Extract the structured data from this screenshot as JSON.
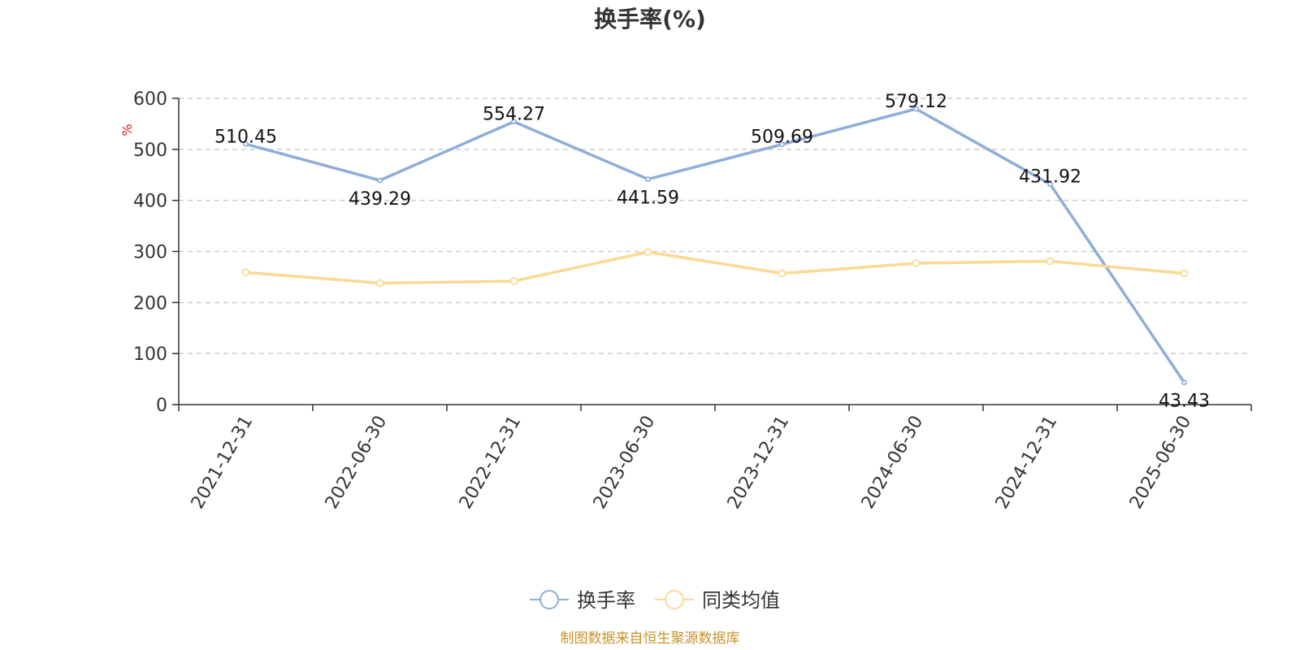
{
  "chart_data": {
    "type": "line",
    "title": "换手率(%)",
    "ylabel": "%",
    "ylim": [
      0,
      600
    ],
    "yticks": [
      0,
      100,
      200,
      300,
      400,
      500,
      600
    ],
    "grid": true,
    "legend_position": "bottom-center",
    "categories": [
      "2021-12-31",
      "2022-06-30",
      "2022-12-31",
      "2023-06-30",
      "2023-12-31",
      "2024-06-30",
      "2024-12-31",
      "2025-06-30"
    ],
    "series": [
      {
        "name": "换手率",
        "color": "#8eaed8",
        "values": [
          510.45,
          439.29,
          554.27,
          441.59,
          509.69,
          579.12,
          431.92,
          43.43
        ],
        "labels": [
          "510.45",
          "439.29",
          "554.27",
          "441.59",
          "509.69",
          "579.12",
          "431.92",
          "43.43"
        ]
      },
      {
        "name": "同类均值",
        "color": "#fcd993",
        "values": [
          259,
          238,
          242,
          299,
          257,
          277,
          281,
          257
        ]
      }
    ]
  },
  "source_note": "制图数据来自恒生聚源数据库"
}
